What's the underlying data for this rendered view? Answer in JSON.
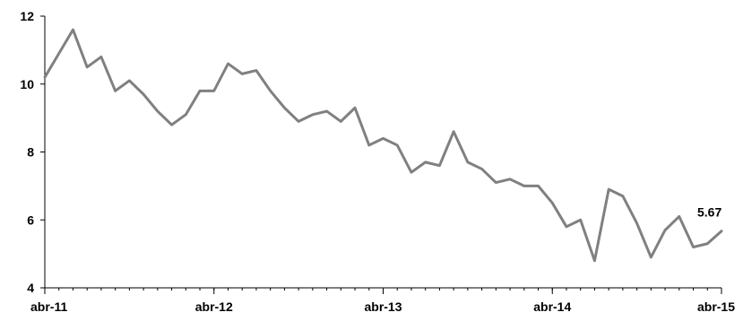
{
  "chart_data": {
    "type": "line",
    "title": "",
    "xlabel": "",
    "ylabel": "",
    "ylim": [
      4,
      12
    ],
    "yticks": [
      4,
      6,
      8,
      10,
      12
    ],
    "xtick_labels": [
      "abr-11",
      "abr-12",
      "abr-13",
      "abr-14",
      "abr-15"
    ],
    "grid": false,
    "legend": "none",
    "line_color": "#808080",
    "x": [
      "2011-04",
      "2011-05",
      "2011-06",
      "2011-07",
      "2011-08",
      "2011-09",
      "2011-10",
      "2011-11",
      "2011-12",
      "2012-01",
      "2012-02",
      "2012-03",
      "2012-04",
      "2012-05",
      "2012-06",
      "2012-07",
      "2012-08",
      "2012-09",
      "2012-10",
      "2012-11",
      "2012-12",
      "2013-01",
      "2013-02",
      "2013-03",
      "2013-04",
      "2013-05",
      "2013-06",
      "2013-07",
      "2013-08",
      "2013-09",
      "2013-10",
      "2013-11",
      "2013-12",
      "2014-01",
      "2014-02",
      "2014-03",
      "2014-04",
      "2014-05",
      "2014-06",
      "2014-07",
      "2014-08",
      "2014-09",
      "2014-10",
      "2014-11",
      "2014-12",
      "2015-01",
      "2015-02",
      "2015-03",
      "2015-04"
    ],
    "series": [
      {
        "values": [
          10.2,
          10.9,
          11.6,
          10.5,
          10.8,
          9.8,
          10.1,
          9.7,
          9.2,
          8.8,
          9.1,
          9.8,
          9.8,
          10.6,
          10.3,
          10.4,
          9.8,
          9.3,
          8.9,
          9.1,
          9.2,
          8.9,
          9.3,
          8.2,
          8.4,
          8.2,
          7.4,
          7.7,
          7.6,
          8.6,
          7.7,
          7.5,
          7.1,
          7.2,
          7.0,
          7.0,
          6.5,
          5.8,
          6.0,
          4.8,
          6.9,
          6.7,
          5.9,
          4.9,
          5.7,
          6.1,
          5.2,
          5.3,
          5.67
        ]
      }
    ],
    "last_value_label": "5.67"
  }
}
